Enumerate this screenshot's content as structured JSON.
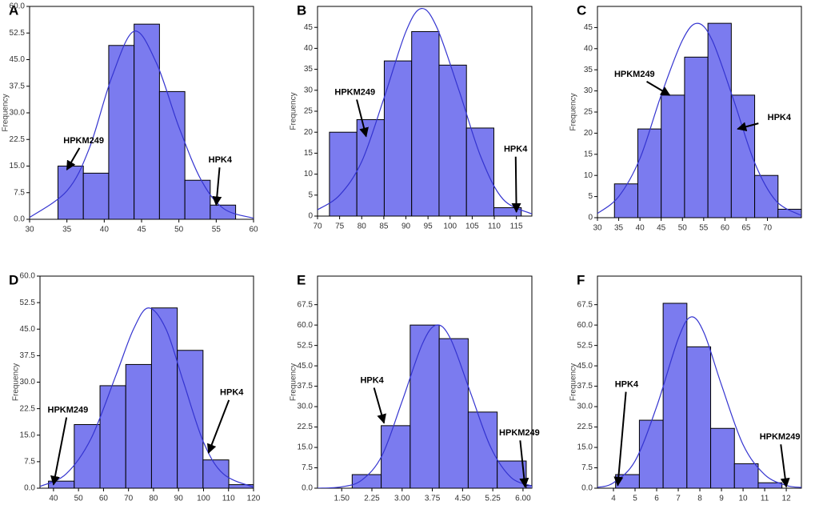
{
  "chart_data": [
    {
      "panel_label": "A",
      "type": "histogram",
      "y_label": "Frequency",
      "color": "#7b7bef",
      "curve_color": "#3434d0",
      "bins": [
        33.8,
        37.2,
        40.6,
        44.0,
        47.4,
        50.8,
        54.2,
        57.6
      ],
      "values": [
        15,
        13,
        49,
        55,
        36,
        11,
        4
      ],
      "curve": {
        "x": [
          30,
          35,
          38,
          41,
          44,
          47,
          50,
          53,
          56,
          60
        ],
        "y": [
          0.5,
          8,
          20,
          40,
          53,
          44,
          26,
          11,
          3,
          0.3
        ]
      },
      "xlim": [
        30,
        60
      ],
      "xticks": [
        30,
        35,
        40,
        45,
        50,
        55,
        60
      ],
      "ylim": [
        0,
        60
      ],
      "yticks": [
        {
          "value": 0,
          "label": "0.0"
        },
        {
          "value": 7.5,
          "label": "7.5"
        },
        {
          "value": 15,
          "label": "15.0"
        },
        {
          "value": 22.5,
          "label": "22.5"
        },
        {
          "value": 30,
          "label": "30.0"
        },
        {
          "value": 37.5,
          "label": "37.5"
        },
        {
          "value": 45,
          "label": "45.0"
        },
        {
          "value": 52.5,
          "label": "52.5"
        },
        {
          "value": 60,
          "label": "60.0"
        }
      ],
      "annotations": [
        {
          "text": "HPKM249",
          "x": 35,
          "y": 14
        },
        {
          "text": "HPK4",
          "x": 55,
          "y": 4
        }
      ]
    },
    {
      "panel_label": "B",
      "type": "histogram",
      "y_label": "Frequency",
      "color": "#7b7bef",
      "curve_color": "#3434d0",
      "bins": [
        72.7,
        78.9,
        85.1,
        91.3,
        97.5,
        103.7,
        109.9,
        116.1
      ],
      "values": [
        20,
        23,
        37,
        44,
        36,
        21,
        2
      ],
      "curve": {
        "x": [
          70,
          75,
          80,
          85,
          90,
          93.5,
          97,
          102,
          107,
          112,
          118.5
        ],
        "y": [
          1.5,
          5,
          13,
          28,
          44,
          49.5,
          45,
          30,
          14,
          4,
          0.5
        ]
      },
      "xlim": [
        70,
        118.5
      ],
      "xticks": [
        70,
        75,
        80,
        85,
        90,
        95,
        100,
        105,
        110,
        115
      ],
      "ylim": [
        0,
        50
      ],
      "yticks": [
        0,
        5,
        10,
        15,
        20,
        25,
        30,
        35,
        40,
        45
      ],
      "annotations": [
        {
          "text": "HPKM249",
          "x": 81,
          "y": 19
        },
        {
          "text": "HPK4",
          "x": 115,
          "y": 1
        }
      ]
    },
    {
      "panel_label": "C",
      "type": "histogram",
      "y_label": "Frequency",
      "color": "#7b7bef",
      "curve_color": "#3434d0",
      "bins": [
        34,
        39.5,
        45,
        50.5,
        56,
        61.5,
        67,
        72.5,
        78
      ],
      "values": [
        8,
        21,
        29,
        38,
        46,
        29,
        10,
        2
      ],
      "curve": {
        "x": [
          30,
          35,
          40,
          45,
          50,
          53.5,
          57,
          62,
          67,
          72,
          78
        ],
        "y": [
          1,
          5,
          14,
          29,
          42,
          46,
          42,
          28,
          13,
          4,
          0.5
        ]
      },
      "xlim": [
        30,
        78
      ],
      "xticks": [
        30,
        35,
        40,
        45,
        50,
        55,
        60,
        65,
        70
      ],
      "ylim": [
        0,
        50
      ],
      "yticks": [
        0,
        5,
        10,
        15,
        20,
        25,
        30,
        35,
        40,
        45
      ],
      "annotations": [
        {
          "text": "HPKM249",
          "x": 47,
          "y": 29
        },
        {
          "text": "HPK4",
          "x": 63,
          "y": 21
        }
      ]
    },
    {
      "panel_label": "D",
      "type": "histogram",
      "y_label": "Frequency",
      "color": "#7b7bef",
      "curve_color": "#3434d0",
      "bins": [
        38,
        48.3,
        58.6,
        68.9,
        79.2,
        89.5,
        99.8,
        110.1,
        120
      ],
      "values": [
        2,
        18,
        29,
        35,
        51,
        39,
        8,
        1
      ],
      "curve": {
        "x": [
          34.6,
          45,
          55,
          65,
          72,
          78,
          85,
          92,
          100,
          108,
          120
        ],
        "y": [
          0.5,
          4,
          14,
          32,
          45,
          51,
          45,
          30,
          13,
          4,
          0.3
        ]
      },
      "xlim": [
        34.6,
        120
      ],
      "xticks": [
        40,
        50,
        60,
        70,
        80,
        90,
        100,
        110,
        120
      ],
      "ylim": [
        0,
        60
      ],
      "yticks": [
        {
          "value": 0,
          "label": "0.0"
        },
        {
          "value": 7.5,
          "label": "7.5"
        },
        {
          "value": 15,
          "label": "15.0"
        },
        {
          "value": 22.5,
          "label": "22.5"
        },
        {
          "value": 30,
          "label": "30.0"
        },
        {
          "value": 37.5,
          "label": "37.5"
        },
        {
          "value": 45,
          "label": "45.0"
        },
        {
          "value": 52.5,
          "label": "52.5"
        },
        {
          "value": 60,
          "label": "60.0"
        }
      ],
      "annotations": [
        {
          "text": "HPKM249",
          "x": 40,
          "y": 1
        },
        {
          "text": "HPK4",
          "x": 102,
          "y": 10
        }
      ]
    },
    {
      "panel_label": "E",
      "type": "histogram",
      "y_label": "Frequency",
      "color": "#7b7bef",
      "curve_color": "#3434d0",
      "bins": [
        1.76,
        2.48,
        3.2,
        3.92,
        4.64,
        5.36,
        6.08,
        6.8
      ],
      "values": [
        5,
        23,
        60,
        55,
        28,
        10,
        1
      ],
      "curve": {
        "x": [
          0.9,
          1.5,
          2.0,
          2.5,
          3.0,
          3.5,
          3.85,
          4.2,
          4.7,
          5.2,
          5.7,
          6.22
        ],
        "y": [
          0,
          0.5,
          3,
          12,
          32,
          53,
          60,
          55,
          35,
          15,
          4,
          0.8
        ]
      },
      "xlim": [
        0.9,
        6.22
      ],
      "xticks": [
        {
          "value": 1.5,
          "label": "1.50"
        },
        {
          "value": 2.25,
          "label": "2.25"
        },
        {
          "value": 3,
          "label": "3.00"
        },
        {
          "value": 3.75,
          "label": "3.75"
        },
        {
          "value": 4.5,
          "label": "4.50"
        },
        {
          "value": 5.25,
          "label": "5.25"
        },
        {
          "value": 6,
          "label": "6.00"
        }
      ],
      "ylim": [
        0,
        78
      ],
      "yticks": [
        {
          "value": 0,
          "label": "0.0"
        },
        7.5,
        {
          "value": 15,
          "label": "15.0"
        },
        22.5,
        {
          "value": 30,
          "label": "30.0"
        },
        37.5,
        {
          "value": 45,
          "label": "45.0"
        },
        52.5,
        {
          "value": 60,
          "label": "60.0"
        },
        67.5
      ],
      "annotations": [
        {
          "text": "HPK4",
          "x": 2.55,
          "y": 24
        },
        {
          "text": "HPKM249",
          "x": 6.05,
          "y": 0.5
        }
      ]
    },
    {
      "panel_label": "F",
      "type": "histogram",
      "y_label": "Frequency",
      "color": "#7b7bef",
      "curve_color": "#3434d0",
      "bins": [
        4.1,
        5.2,
        6.3,
        7.4,
        8.5,
        9.6,
        10.7,
        11.8
      ],
      "values": [
        5,
        25,
        68,
        52,
        22,
        9,
        2
      ],
      "curve": {
        "x": [
          3.26,
          4,
          5,
          6,
          7,
          7.6,
          8.2,
          9,
          10,
          11,
          12,
          12.7
        ],
        "y": [
          0.3,
          2,
          10,
          30,
          55,
          63,
          57,
          38,
          16,
          5,
          1,
          0.3
        ]
      },
      "xlim": [
        3.26,
        12.7
      ],
      "xticks": [
        4,
        5,
        6,
        7,
        8,
        9,
        10,
        11,
        12
      ],
      "ylim": [
        0,
        78
      ],
      "yticks": [
        {
          "value": 0,
          "label": "0.0"
        },
        7.5,
        {
          "value": 15,
          "label": "15.0"
        },
        22.5,
        {
          "value": 30,
          "label": "30.0"
        },
        37.5,
        {
          "value": 45,
          "label": "45.0"
        },
        52.5,
        {
          "value": 60,
          "label": "60.0"
        },
        67.5
      ],
      "annotations": [
        {
          "text": "HPK4",
          "x": 4.2,
          "y": 1
        },
        {
          "text": "HPKM249",
          "x": 12,
          "y": 0.5
        }
      ]
    }
  ]
}
